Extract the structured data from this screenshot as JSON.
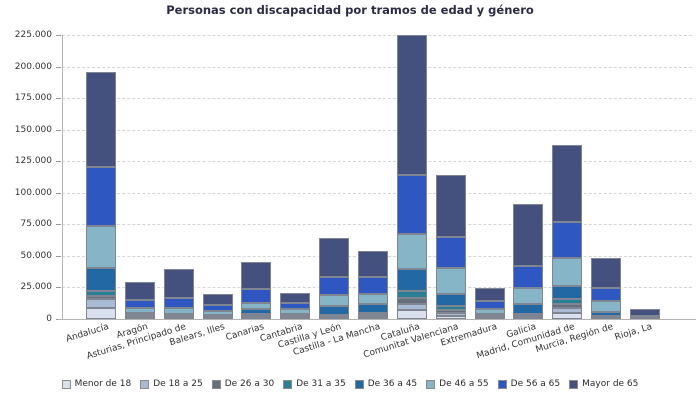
{
  "title": "Personas con discapacidad por tramos de edad y género",
  "colors": {
    "grid": "#d6d6d6",
    "axis": "#b3b3b3",
    "bar_border": "#7f8591",
    "tick_text": "#333333",
    "title_text": "#2b2b45"
  },
  "chart_data": {
    "type": "bar",
    "stacked": true,
    "title": "Personas con discapacidad por tramos de edad y género",
    "xlabel": "",
    "ylabel": "",
    "ylim": [
      0,
      225000
    ],
    "grid": "horizontal-dashed",
    "legend_position": "bottom",
    "yticks": [
      0,
      25000,
      50000,
      75000,
      100000,
      125000,
      150000,
      175000,
      200000,
      225000
    ],
    "ytick_labels": [
      "0",
      "25.000",
      "50.000",
      "75.000",
      "100.000",
      "125.000",
      "150.000",
      "175.000",
      "200.000",
      "225.000"
    ],
    "categories": [
      "Andalucía",
      "Aragón",
      "Asturias, Principado de",
      "Balears, Illes",
      "Canarias",
      "Cantabria",
      "Castilla y León",
      "Castilla - La Mancha",
      "Cataluña",
      "Comunitat Valenciana",
      "Extremadura",
      "Galicia",
      "Madrid, Comunidad de",
      "Murcia, Región de",
      "Rioja, La"
    ],
    "series": [
      {
        "name": "Menor de 18",
        "color": "#dbe0ee",
        "values": [
          9000,
          1000,
          700,
          600,
          1000,
          800,
          800,
          1200,
          7500,
          2000,
          500,
          1100,
          4500,
          400,
          100
        ]
      },
      {
        "name": "De 18 a 25",
        "color": "#a9bad5",
        "values": [
          6700,
          700,
          500,
          400,
          800,
          600,
          600,
          900,
          4500,
          3000,
          400,
          800,
          4500,
          400,
          100
        ]
      },
      {
        "name": "De 26 a 30",
        "color": "#66707c",
        "values": [
          2600,
          500,
          400,
          300,
          600,
          500,
          500,
          700,
          4700,
          2100,
          600,
          800,
          2700,
          500,
          100
        ]
      },
      {
        "name": "De 31 a 35",
        "color": "#2a7f96",
        "values": [
          4000,
          1000,
          700,
          500,
          1300,
          700,
          1300,
          1700,
          5400,
          3200,
          800,
          1500,
          4000,
          800,
          100
        ]
      },
      {
        "name": "De 36 a 45",
        "color": "#2268a4",
        "values": [
          18500,
          1600,
          1400,
          1200,
          4000,
          1100,
          7100,
          7200,
          17700,
          9500,
          1400,
          7500,
          10500,
          3500,
          300
        ]
      },
      {
        "name": "De 46 a 55",
        "color": "#85b5c7",
        "values": [
          33100,
          4200,
          4800,
          3400,
          5300,
          4000,
          8800,
          8400,
          27800,
          20400,
          4000,
          12700,
          22500,
          8700,
          400
        ]
      },
      {
        "name": "De 56 a 65",
        "color": "#2f57c2",
        "values": [
          46400,
          5900,
          7900,
          4500,
          11100,
          5300,
          14300,
          13500,
          46400,
          24400,
          6600,
          17700,
          28400,
          10600,
          1600
        ]
      },
      {
        "name": "Mayor de 65",
        "color": "#44517e",
        "values": [
          75600,
          14500,
          23100,
          9200,
          21200,
          7400,
          30400,
          19900,
          111000,
          49300,
          10100,
          49100,
          60700,
          23400,
          5000
        ]
      }
    ]
  }
}
